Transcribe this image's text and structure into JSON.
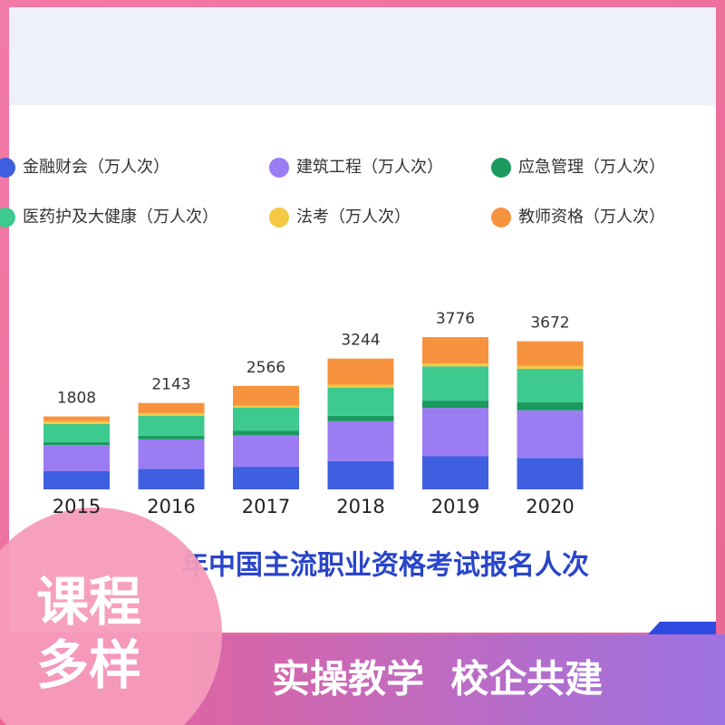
{
  "chart_data": {
    "type": "stacked-bar",
    "title": "年中国主流职业资格考试报名人次",
    "categories": [
      "2015",
      "2016",
      "2017",
      "2018",
      "2019",
      "2020"
    ],
    "totals": [
      1808,
      2143,
      2566,
      3244,
      3776,
      3672
    ],
    "series": [
      {
        "name": "金融财会（万人次）",
        "color": "#3d5fe0",
        "values": [
          450,
          510,
          560,
          700,
          820,
          780
        ]
      },
      {
        "name": "建筑工程（万人次）",
        "color": "#9b7cf3",
        "values": [
          650,
          730,
          780,
          990,
          1200,
          1180
        ]
      },
      {
        "name": "应急管理（万人次）",
        "color": "#1a9a5e",
        "values": [
          70,
          90,
          110,
          135,
          180,
          200
        ]
      },
      {
        "name": "医药护及大健康（万人次）",
        "color": "#3ec98e",
        "values": [
          450,
          490,
          580,
          700,
          850,
          830
        ]
      },
      {
        "name": "法考（万人次）",
        "color": "#f5c842",
        "values": [
          70,
          70,
          50,
          70,
          70,
          70
        ]
      },
      {
        "name": "教师资格（万人次）",
        "color": "#f7923e",
        "values": [
          118,
          253,
          486,
          649,
          656,
          612
        ]
      }
    ]
  },
  "banner": {
    "left": [
      "课程",
      "多样"
    ],
    "right": "实操教学  校企共建"
  }
}
